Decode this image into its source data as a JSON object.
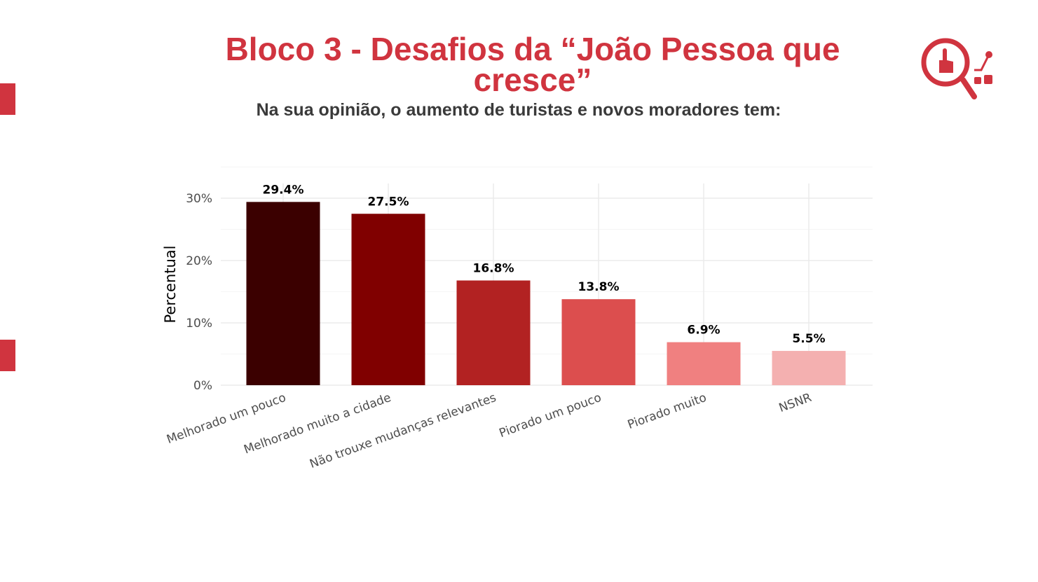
{
  "header": {
    "title": "Bloco 3 - Desafios da “João Pessoa que cresce”",
    "subtitle": "Na sua opinião, o aumento de turistas e novos moradores tem:",
    "logo_icon": "magnifier-hand-chart-icon"
  },
  "chart_data": {
    "type": "bar",
    "title": "",
    "xlabel": "",
    "ylabel": "Percentual",
    "categories": [
      "Melhorado um pouco",
      "Melhorado muito a cidade",
      "Não trouxe mudanças relevantes",
      "Piorado um pouco",
      "Piorado muito",
      "NSNR"
    ],
    "values": [
      29.4,
      27.5,
      16.8,
      13.8,
      6.9,
      5.5
    ],
    "labels": [
      "29.4%",
      "27.5%",
      "16.8%",
      "13.8%",
      "6.9%",
      "5.5%"
    ],
    "colors": [
      "#3b0000",
      "#800000",
      "#b22222",
      "#dc4e4e",
      "#f08080",
      "#f4b0b0"
    ],
    "yticks": [
      0,
      10,
      20,
      30
    ],
    "ytick_labels": [
      "0%",
      "10%",
      "20%",
      "30%"
    ],
    "ylim": [
      0,
      30.5
    ],
    "grid": true,
    "legend": "none"
  }
}
